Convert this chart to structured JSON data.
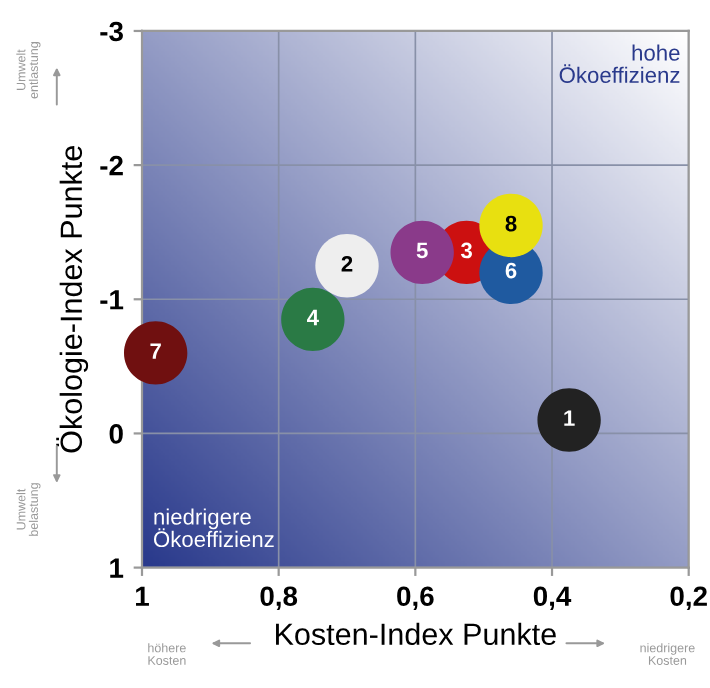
{
  "chart_data": {
    "type": "scatter",
    "xlabel": "Kosten-Index Punkte",
    "ylabel": "Ökologie-Index Punkte",
    "xlim": [
      1,
      0.2
    ],
    "ylim": [
      1,
      -3
    ],
    "xticks": [
      1,
      {
        "value": 0.8,
        "label": "0,8"
      },
      {
        "value": 0.6,
        "label": "0,6"
      },
      {
        "value": 0.4,
        "label": "0,4"
      },
      {
        "value": 0.2,
        "label": "0,2"
      }
    ],
    "yticks": [
      1,
      0,
      -1,
      -2,
      -3
    ],
    "grid": true,
    "legend": false,
    "marker": "circle",
    "annotations": [
      "hohe Ökoeffizienz",
      "niedrigere Ökoeffizienz",
      "Umwelt entlastung",
      "Umwelt belastung",
      "höhere Kosten",
      "niedrigere Kosten"
    ],
    "series": [
      {
        "name": "1",
        "color": "#222222",
        "x": [
          0.375
        ],
        "values": [
          -0.1
        ]
      },
      {
        "name": "2",
        "color": "#eeeeee",
        "x": [
          0.7
        ],
        "values": [
          -1.25
        ]
      },
      {
        "name": "3",
        "color": "#cc1010",
        "x": [
          0.525
        ],
        "values": [
          -1.35
        ]
      },
      {
        "name": "4",
        "color": "#2a7a45",
        "x": [
          0.75
        ],
        "values": [
          -0.85
        ]
      },
      {
        "name": "5",
        "color": "#8a3a8a",
        "x": [
          0.59
        ],
        "values": [
          -1.35
        ]
      },
      {
        "name": "6",
        "color": "#1f5aa0",
        "x": [
          0.46
        ],
        "values": [
          -1.2
        ]
      },
      {
        "name": "7",
        "color": "#701010",
        "x": [
          0.98
        ],
        "values": [
          -0.6
        ]
      },
      {
        "name": "8",
        "color": "#e8e010",
        "x": [
          0.46
        ],
        "values": [
          -1.55
        ]
      }
    ]
  }
}
